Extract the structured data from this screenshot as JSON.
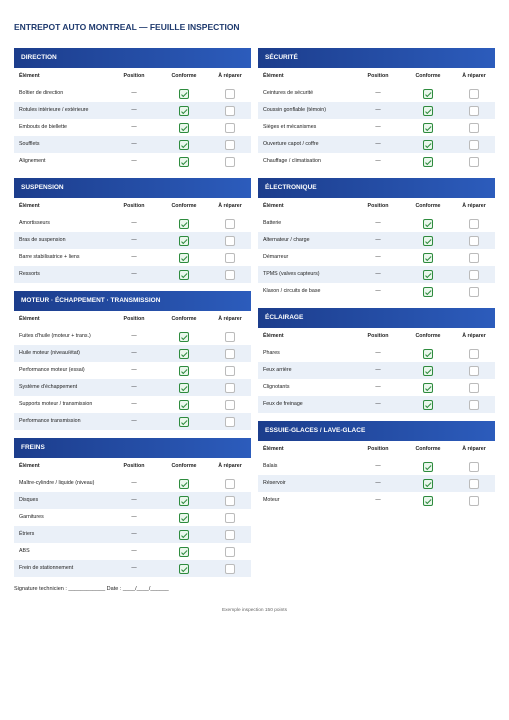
{
  "header": {
    "title": "ENTREPOT AUTO MONTREAL — FEUILLE INSPECTION"
  },
  "columns": [
    "Élément",
    "Position",
    "Conforme",
    "À réparer"
  ],
  "left": [
    {
      "title": "DIRECTION",
      "rows": [
        [
          "Boîtier de direction",
          "—"
        ],
        [
          "Rotules intérieure / extérieure",
          "—"
        ],
        [
          "Embouts de biellette",
          "—"
        ],
        [
          "Soufflets",
          "—"
        ],
        [
          "Alignement",
          "—"
        ]
      ]
    },
    {
      "title": "SUSPENSION",
      "rows": [
        [
          "Amortisseurs",
          "—"
        ],
        [
          "Bras de suspension",
          "—"
        ],
        [
          "Barre stabilisatrice + liens",
          "—"
        ],
        [
          "Ressorts",
          "—"
        ]
      ]
    },
    {
      "title": "MOTEUR · ÉCHAPPEMENT · TRANSMISSION",
      "rows": [
        [
          "Fuites d'huile (moteur + trans.)",
          "—"
        ],
        [
          "Huile moteur (niveau/état)",
          "—"
        ],
        [
          "Performance moteur (essai)",
          "—"
        ],
        [
          "Système d'échappement",
          "—"
        ],
        [
          "Supports moteur / transmission",
          "—"
        ],
        [
          "Performance transmission",
          "—"
        ]
      ]
    },
    {
      "title": "FREINS",
      "rows": [
        [
          "Maître-cylindre / liquide (niveau)",
          "—"
        ],
        [
          "Disques",
          "—"
        ],
        [
          "Garnitures",
          "—"
        ],
        [
          "Étriers",
          "—"
        ],
        [
          "ABS",
          "—"
        ],
        [
          "Frein de stationnement",
          "—"
        ]
      ]
    }
  ],
  "right": [
    {
      "title": "SÉCURITÉ",
      "rows": [
        [
          "Ceintures de sécurité",
          "—"
        ],
        [
          "Coussin gonflable (témoin)",
          "—"
        ],
        [
          "Sièges et mécanismes",
          "—"
        ],
        [
          "Ouverture capot / coffre",
          "—"
        ],
        [
          "Chauffage / climatisation",
          "—"
        ]
      ]
    },
    {
      "title": "ÉLECTRONIQUE",
      "rows": [
        [
          "Batterie",
          "—"
        ],
        [
          "Alternateur / charge",
          "—"
        ],
        [
          "Démarreur",
          "—"
        ],
        [
          "TPMS (valves capteurs)",
          "—"
        ],
        [
          "Klaxon / circuits de base",
          "—"
        ]
      ]
    },
    {
      "title": "ÉCLAIRAGE",
      "rows": [
        [
          "Phares",
          "—"
        ],
        [
          "Feux arrière",
          "—"
        ],
        [
          "Clignotants",
          "—"
        ],
        [
          "Feux de freinage",
          "—"
        ]
      ]
    },
    {
      "title": "ESSUIE-GLACES / LAVE-GLACE",
      "rows": [
        [
          "Balais",
          "—"
        ],
        [
          "Réservoir",
          "—"
        ],
        [
          "Moteur",
          "—"
        ]
      ]
    }
  ],
  "signature": "Signature technicien : ____________ Date : ____/____/______",
  "footer": "Exemple inspection 150 points"
}
